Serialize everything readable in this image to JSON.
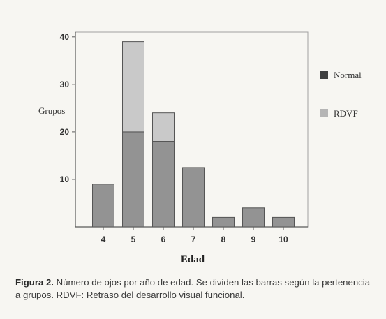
{
  "chart_data": {
    "type": "bar",
    "stacked": true,
    "categories": [
      "4",
      "5",
      "6",
      "7",
      "8",
      "9",
      "10"
    ],
    "series": [
      {
        "name": "Normal",
        "values": [
          9,
          20,
          18,
          12.5,
          2,
          4,
          2
        ]
      },
      {
        "name": "RDVF",
        "values": [
          0,
          19,
          6,
          0,
          0,
          0,
          0
        ]
      }
    ],
    "xlabel": "Edad",
    "ylabel": "Grupos",
    "ylim": [
      0,
      41
    ],
    "yticks": [
      10,
      20,
      30,
      40
    ],
    "grid": false,
    "legend_position": "right",
    "colors": {
      "Normal": "#939393",
      "RDVF": "#c9c9c9",
      "Normal_legend": "#3f3f3f",
      "RDVF_legend": "#b5b5b5"
    }
  },
  "caption": {
    "label": "Figura 2.",
    "text": "Número de ojos por año de edad. Se dividen las barras según la pertenencia a grupos. RDVF: Retraso del desarrollo visual funcional."
  }
}
